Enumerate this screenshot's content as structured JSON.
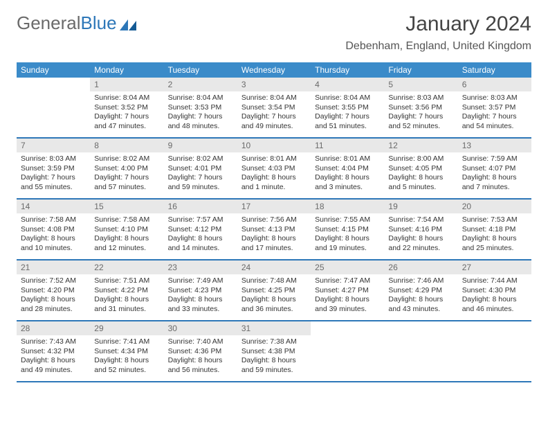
{
  "brand": {
    "part1": "General",
    "part2": "Blue"
  },
  "title": "January 2024",
  "location": "Debenham, England, United Kingdom",
  "dayNames": [
    "Sunday",
    "Monday",
    "Tuesday",
    "Wednesday",
    "Thursday",
    "Friday",
    "Saturday"
  ],
  "colors": {
    "headerBg": "#3b8bc9",
    "weekBorder": "#2d77b8",
    "dayNumBg": "#e8e8e8",
    "textGray": "#6a6a6a",
    "textDark": "#333333"
  },
  "weeks": [
    [
      {
        "num": "",
        "empty": true
      },
      {
        "num": "1",
        "sunrise": "Sunrise: 8:04 AM",
        "sunset": "Sunset: 3:52 PM",
        "day1": "Daylight: 7 hours",
        "day2": "and 47 minutes."
      },
      {
        "num": "2",
        "sunrise": "Sunrise: 8:04 AM",
        "sunset": "Sunset: 3:53 PM",
        "day1": "Daylight: 7 hours",
        "day2": "and 48 minutes."
      },
      {
        "num": "3",
        "sunrise": "Sunrise: 8:04 AM",
        "sunset": "Sunset: 3:54 PM",
        "day1": "Daylight: 7 hours",
        "day2": "and 49 minutes."
      },
      {
        "num": "4",
        "sunrise": "Sunrise: 8:04 AM",
        "sunset": "Sunset: 3:55 PM",
        "day1": "Daylight: 7 hours",
        "day2": "and 51 minutes."
      },
      {
        "num": "5",
        "sunrise": "Sunrise: 8:03 AM",
        "sunset": "Sunset: 3:56 PM",
        "day1": "Daylight: 7 hours",
        "day2": "and 52 minutes."
      },
      {
        "num": "6",
        "sunrise": "Sunrise: 8:03 AM",
        "sunset": "Sunset: 3:57 PM",
        "day1": "Daylight: 7 hours",
        "day2": "and 54 minutes."
      }
    ],
    [
      {
        "num": "7",
        "sunrise": "Sunrise: 8:03 AM",
        "sunset": "Sunset: 3:59 PM",
        "day1": "Daylight: 7 hours",
        "day2": "and 55 minutes."
      },
      {
        "num": "8",
        "sunrise": "Sunrise: 8:02 AM",
        "sunset": "Sunset: 4:00 PM",
        "day1": "Daylight: 7 hours",
        "day2": "and 57 minutes."
      },
      {
        "num": "9",
        "sunrise": "Sunrise: 8:02 AM",
        "sunset": "Sunset: 4:01 PM",
        "day1": "Daylight: 7 hours",
        "day2": "and 59 minutes."
      },
      {
        "num": "10",
        "sunrise": "Sunrise: 8:01 AM",
        "sunset": "Sunset: 4:03 PM",
        "day1": "Daylight: 8 hours",
        "day2": "and 1 minute."
      },
      {
        "num": "11",
        "sunrise": "Sunrise: 8:01 AM",
        "sunset": "Sunset: 4:04 PM",
        "day1": "Daylight: 8 hours",
        "day2": "and 3 minutes."
      },
      {
        "num": "12",
        "sunrise": "Sunrise: 8:00 AM",
        "sunset": "Sunset: 4:05 PM",
        "day1": "Daylight: 8 hours",
        "day2": "and 5 minutes."
      },
      {
        "num": "13",
        "sunrise": "Sunrise: 7:59 AM",
        "sunset": "Sunset: 4:07 PM",
        "day1": "Daylight: 8 hours",
        "day2": "and 7 minutes."
      }
    ],
    [
      {
        "num": "14",
        "sunrise": "Sunrise: 7:58 AM",
        "sunset": "Sunset: 4:08 PM",
        "day1": "Daylight: 8 hours",
        "day2": "and 10 minutes."
      },
      {
        "num": "15",
        "sunrise": "Sunrise: 7:58 AM",
        "sunset": "Sunset: 4:10 PM",
        "day1": "Daylight: 8 hours",
        "day2": "and 12 minutes."
      },
      {
        "num": "16",
        "sunrise": "Sunrise: 7:57 AM",
        "sunset": "Sunset: 4:12 PM",
        "day1": "Daylight: 8 hours",
        "day2": "and 14 minutes."
      },
      {
        "num": "17",
        "sunrise": "Sunrise: 7:56 AM",
        "sunset": "Sunset: 4:13 PM",
        "day1": "Daylight: 8 hours",
        "day2": "and 17 minutes."
      },
      {
        "num": "18",
        "sunrise": "Sunrise: 7:55 AM",
        "sunset": "Sunset: 4:15 PM",
        "day1": "Daylight: 8 hours",
        "day2": "and 19 minutes."
      },
      {
        "num": "19",
        "sunrise": "Sunrise: 7:54 AM",
        "sunset": "Sunset: 4:16 PM",
        "day1": "Daylight: 8 hours",
        "day2": "and 22 minutes."
      },
      {
        "num": "20",
        "sunrise": "Sunrise: 7:53 AM",
        "sunset": "Sunset: 4:18 PM",
        "day1": "Daylight: 8 hours",
        "day2": "and 25 minutes."
      }
    ],
    [
      {
        "num": "21",
        "sunrise": "Sunrise: 7:52 AM",
        "sunset": "Sunset: 4:20 PM",
        "day1": "Daylight: 8 hours",
        "day2": "and 28 minutes."
      },
      {
        "num": "22",
        "sunrise": "Sunrise: 7:51 AM",
        "sunset": "Sunset: 4:22 PM",
        "day1": "Daylight: 8 hours",
        "day2": "and 31 minutes."
      },
      {
        "num": "23",
        "sunrise": "Sunrise: 7:49 AM",
        "sunset": "Sunset: 4:23 PM",
        "day1": "Daylight: 8 hours",
        "day2": "and 33 minutes."
      },
      {
        "num": "24",
        "sunrise": "Sunrise: 7:48 AM",
        "sunset": "Sunset: 4:25 PM",
        "day1": "Daylight: 8 hours",
        "day2": "and 36 minutes."
      },
      {
        "num": "25",
        "sunrise": "Sunrise: 7:47 AM",
        "sunset": "Sunset: 4:27 PM",
        "day1": "Daylight: 8 hours",
        "day2": "and 39 minutes."
      },
      {
        "num": "26",
        "sunrise": "Sunrise: 7:46 AM",
        "sunset": "Sunset: 4:29 PM",
        "day1": "Daylight: 8 hours",
        "day2": "and 43 minutes."
      },
      {
        "num": "27",
        "sunrise": "Sunrise: 7:44 AM",
        "sunset": "Sunset: 4:30 PM",
        "day1": "Daylight: 8 hours",
        "day2": "and 46 minutes."
      }
    ],
    [
      {
        "num": "28",
        "sunrise": "Sunrise: 7:43 AM",
        "sunset": "Sunset: 4:32 PM",
        "day1": "Daylight: 8 hours",
        "day2": "and 49 minutes."
      },
      {
        "num": "29",
        "sunrise": "Sunrise: 7:41 AM",
        "sunset": "Sunset: 4:34 PM",
        "day1": "Daylight: 8 hours",
        "day2": "and 52 minutes."
      },
      {
        "num": "30",
        "sunrise": "Sunrise: 7:40 AM",
        "sunset": "Sunset: 4:36 PM",
        "day1": "Daylight: 8 hours",
        "day2": "and 56 minutes."
      },
      {
        "num": "31",
        "sunrise": "Sunrise: 7:38 AM",
        "sunset": "Sunset: 4:38 PM",
        "day1": "Daylight: 8 hours",
        "day2": "and 59 minutes."
      },
      {
        "num": "",
        "empty": true
      },
      {
        "num": "",
        "empty": true
      },
      {
        "num": "",
        "empty": true
      }
    ]
  ]
}
